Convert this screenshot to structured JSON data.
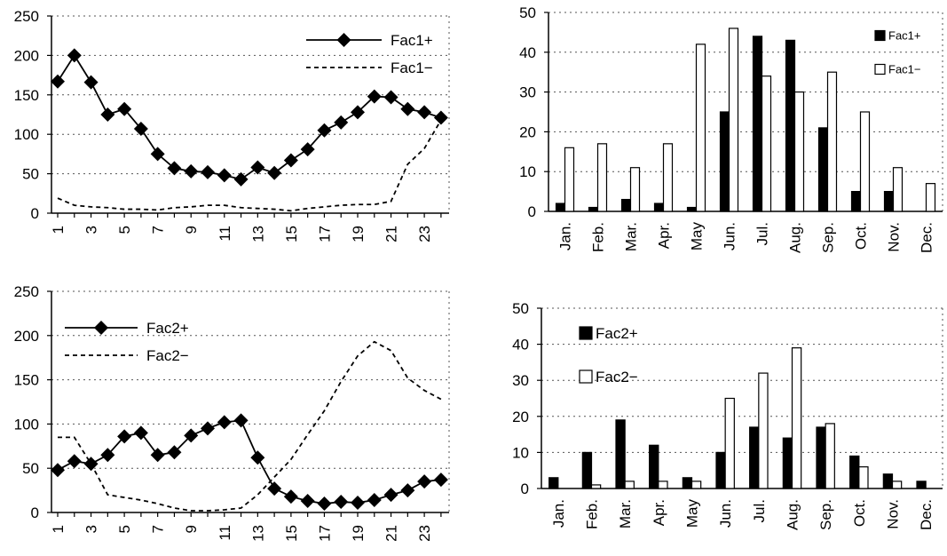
{
  "chart_data": [
    {
      "id": "fac1-hourly",
      "type": "line",
      "x": [
        1,
        2,
        3,
        4,
        5,
        6,
        7,
        8,
        9,
        10,
        11,
        12,
        13,
        14,
        15,
        16,
        17,
        18,
        19,
        20,
        21,
        22,
        23,
        24
      ],
      "x_tick_labels": [
        "1",
        "3",
        "5",
        "7",
        "9",
        "11",
        "13",
        "15",
        "17",
        "19",
        "21",
        "23"
      ],
      "y_ticks": [
        0,
        50,
        100,
        150,
        200,
        250
      ],
      "ylim": [
        0,
        250
      ],
      "legend_position": "top-right",
      "series": [
        {
          "name": "Fac1+",
          "style": "solid-diamond",
          "values": [
            167,
            200,
            166,
            125,
            132,
            107,
            75,
            57,
            53,
            52,
            48,
            43,
            58,
            51,
            67,
            81,
            105,
            115,
            128,
            148,
            147,
            132,
            128,
            121
          ]
        },
        {
          "name": "Fac1−",
          "style": "dashed",
          "values": [
            19,
            10,
            8,
            7,
            5,
            5,
            4,
            7,
            8,
            10,
            10,
            7,
            6,
            5,
            3,
            6,
            8,
            10,
            11,
            11,
            15,
            62,
            82,
            118
          ]
        }
      ]
    },
    {
      "id": "fac1-monthly",
      "type": "bar",
      "categories": [
        "Jan.",
        "Feb.",
        "Mar.",
        "Apr.",
        "May",
        "Jun.",
        "Jul.",
        "Aug.",
        "Sep.",
        "Oct.",
        "Nov.",
        "Dec."
      ],
      "y_ticks": [
        0,
        10,
        20,
        30,
        40,
        50
      ],
      "ylim": [
        0,
        50
      ],
      "legend_position": "top-right",
      "series": [
        {
          "name": "Fac1+",
          "fill": "black",
          "values": [
            2,
            1,
            3,
            2,
            1,
            25,
            44,
            43,
            21,
            5,
            5,
            0
          ]
        },
        {
          "name": "Fac1−",
          "fill": "white",
          "values": [
            16,
            17,
            11,
            17,
            42,
            46,
            34,
            30,
            35,
            25,
            11,
            7
          ]
        }
      ]
    },
    {
      "id": "fac2-hourly",
      "type": "line",
      "x": [
        1,
        2,
        3,
        4,
        5,
        6,
        7,
        8,
        9,
        10,
        11,
        12,
        13,
        14,
        15,
        16,
        17,
        18,
        19,
        20,
        21,
        22,
        23,
        24
      ],
      "x_tick_labels": [
        "1",
        "3",
        "5",
        "7",
        "9",
        "11",
        "13",
        "15",
        "17",
        "19",
        "21",
        "23"
      ],
      "y_ticks": [
        0,
        50,
        100,
        150,
        200,
        250
      ],
      "ylim": [
        0,
        250
      ],
      "legend_position": "top-left",
      "series": [
        {
          "name": "Fac2+",
          "style": "solid-diamond",
          "values": [
            48,
            58,
            55,
            65,
            86,
            90,
            65,
            68,
            87,
            95,
            102,
            104,
            62,
            27,
            18,
            13,
            10,
            12,
            11,
            14,
            20,
            25,
            35,
            37
          ]
        },
        {
          "name": "Fac2−",
          "style": "dashed",
          "values": [
            85,
            85,
            55,
            20,
            17,
            14,
            10,
            5,
            2,
            2,
            3,
            5,
            20,
            40,
            60,
            88,
            115,
            148,
            177,
            193,
            183,
            152,
            138,
            128
          ]
        }
      ]
    },
    {
      "id": "fac2-monthly",
      "type": "bar",
      "categories": [
        "Jan.",
        "Feb.",
        "Mar.",
        "Apr.",
        "May",
        "Jun.",
        "Jul.",
        "Aug.",
        "Sep.",
        "Oct.",
        "Nov.",
        "Dec."
      ],
      "y_ticks": [
        0,
        10,
        20,
        30,
        40,
        50
      ],
      "ylim": [
        0,
        50
      ],
      "legend_position": "top-left",
      "series": [
        {
          "name": "Fac2+",
          "fill": "black",
          "values": [
            3,
            10,
            19,
            12,
            3,
            10,
            17,
            14,
            17,
            9,
            4,
            2
          ]
        },
        {
          "name": "Fac2−",
          "fill": "white",
          "values": [
            0,
            1,
            2,
            2,
            2,
            25,
            32,
            39,
            18,
            6,
            2,
            0
          ]
        }
      ]
    }
  ]
}
